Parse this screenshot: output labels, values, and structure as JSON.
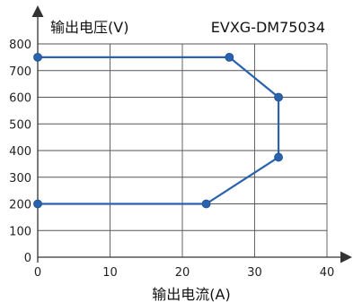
{
  "chart_data": {
    "type": "line",
    "title": "",
    "model": "EVXG-DM75034",
    "xlabel": "输出电流(A)",
    "ylabel": "输出电压(V)",
    "xlim": [
      0,
      40
    ],
    "ylim": [
      0,
      800
    ],
    "xticks": [
      0,
      10,
      20,
      30,
      40
    ],
    "yticks": [
      0,
      100,
      200,
      300,
      400,
      500,
      600,
      700,
      800
    ],
    "grid": true,
    "series": [
      {
        "x": [
          0,
          26.5,
          33.3,
          33.3,
          23.3,
          0
        ],
        "y": [
          750,
          750,
          600,
          375,
          200,
          200
        ],
        "color": "#2a62ad",
        "marker_color": "#e8402a"
      }
    ]
  }
}
